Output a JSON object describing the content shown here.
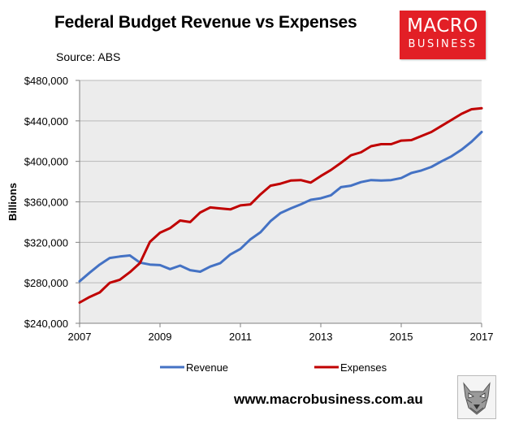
{
  "header": {
    "title": "Federal Budget Revenue vs Expenses",
    "source": "Source: ABS"
  },
  "logo": {
    "line1": "MACRO",
    "line2": "BUSINESS",
    "color": "#e21f26"
  },
  "footer": {
    "url": "www.macrobusiness.com.au",
    "mascot_icon": "wolf-mascot-icon"
  },
  "chart_data": {
    "type": "line",
    "title": "Federal Budget Revenue vs Expenses",
    "xlabel": "",
    "ylabel": "Billions",
    "xlim": [
      2007,
      2017
    ],
    "ylim": [
      240000,
      480000
    ],
    "x_ticks": [
      2007,
      2009,
      2011,
      2013,
      2015,
      2017
    ],
    "y_ticks": [
      240000,
      280000,
      320000,
      360000,
      400000,
      440000,
      480000
    ],
    "y_tick_labels": [
      "$240,000",
      "$280,000",
      "$320,000",
      "$360,000",
      "$400,000",
      "$440,000",
      "$480,000"
    ],
    "x_tick_labels": [
      "2007",
      "2009",
      "2011",
      "2013",
      "2015",
      "2017"
    ],
    "background": "#ececec",
    "legend_position": "bottom",
    "series": [
      {
        "name": "Revenue",
        "color": "#4472c4",
        "x": [
          2007.0,
          2007.25,
          2007.5,
          2007.75,
          2008.0,
          2008.25,
          2008.5,
          2008.75,
          2009.0,
          2009.25,
          2009.5,
          2009.75,
          2010.0,
          2010.25,
          2010.5,
          2010.75,
          2011.0,
          2011.25,
          2011.5,
          2011.75,
          2012.0,
          2012.25,
          2012.5,
          2012.75,
          2013.0,
          2013.25,
          2013.5,
          2013.75,
          2014.0,
          2014.25,
          2014.5,
          2014.75,
          2015.0,
          2015.25,
          2015.5,
          2015.75,
          2016.0,
          2016.25,
          2016.5,
          2016.75,
          2017.0
        ],
        "values": [
          281500,
          290000,
          298000,
          304500,
          306000,
          307000,
          300000,
          298000,
          297500,
          293500,
          297000,
          292500,
          291000,
          296000,
          299500,
          308000,
          313500,
          323000,
          330000,
          341000,
          349000,
          353500,
          357500,
          362000,
          363500,
          366500,
          374500,
          376000,
          379500,
          381500,
          381000,
          381500,
          383500,
          388500,
          391000,
          394500,
          400000,
          405000,
          411500,
          419500,
          429000
        ]
      },
      {
        "name": "Expenses",
        "color": "#c00000",
        "x": [
          2007.0,
          2007.25,
          2007.5,
          2007.75,
          2008.0,
          2008.25,
          2008.5,
          2008.75,
          2009.0,
          2009.25,
          2009.5,
          2009.75,
          2010.0,
          2010.25,
          2010.5,
          2010.75,
          2011.0,
          2011.25,
          2011.5,
          2011.75,
          2012.0,
          2012.25,
          2012.5,
          2012.75,
          2013.0,
          2013.25,
          2013.5,
          2013.75,
          2014.0,
          2014.25,
          2014.5,
          2014.75,
          2015.0,
          2015.25,
          2015.5,
          2015.75,
          2016.0,
          2016.25,
          2016.5,
          2016.75,
          2017.0
        ],
        "values": [
          260500,
          266000,
          270500,
          280000,
          283000,
          290500,
          299500,
          320500,
          329500,
          334000,
          341500,
          340000,
          349500,
          354500,
          353500,
          352500,
          356500,
          357500,
          367500,
          376000,
          378000,
          381000,
          381500,
          379000,
          385500,
          391500,
          398500,
          406000,
          409000,
          415000,
          417000,
          417000,
          420500,
          421000,
          425000,
          429000,
          435000,
          441000,
          447000,
          451500,
          452500
        ]
      }
    ]
  }
}
